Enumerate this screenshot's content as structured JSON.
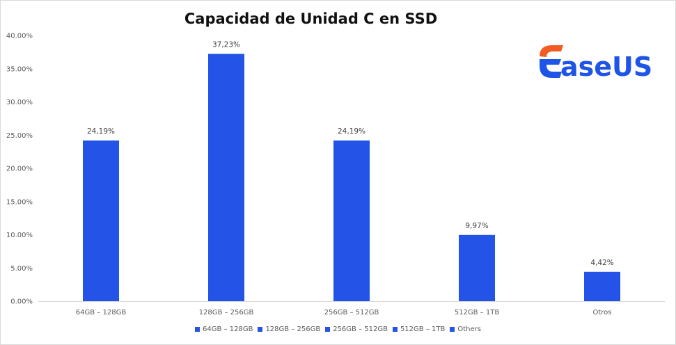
{
  "brand": {
    "logo_text": "EaseUS",
    "colors": {
      "orange": "#f25c22",
      "blue": "#1f55e6"
    }
  },
  "chart_data": {
    "type": "bar",
    "title": "Capacidad de Unidad C en SSD",
    "categories": [
      "64GB – 128GB",
      "128GB – 256GB",
      "256GB – 512GB",
      "512GB – 1TB",
      "Otros"
    ],
    "values": [
      24.19,
      37.23,
      24.19,
      9.97,
      4.42
    ],
    "data_labels": [
      "24,19%",
      "37,23%",
      "24,19%",
      "9,97%",
      "4,42%"
    ],
    "y_ticks": [
      "0.00%",
      "5.00%",
      "10.00%",
      "15.00%",
      "20.00%",
      "25.00%",
      "30.00%",
      "35.00%",
      "40.00%"
    ],
    "ylim": [
      0,
      40
    ],
    "grid": false,
    "legend_position": "bottom",
    "legend": [
      "64GB – 128GB",
      "128GB – 256GB",
      "256GB – 512GB",
      "512GB – 1TB",
      "Others"
    ],
    "bar_color": "#2453e8",
    "xlabel": "",
    "ylabel": ""
  }
}
